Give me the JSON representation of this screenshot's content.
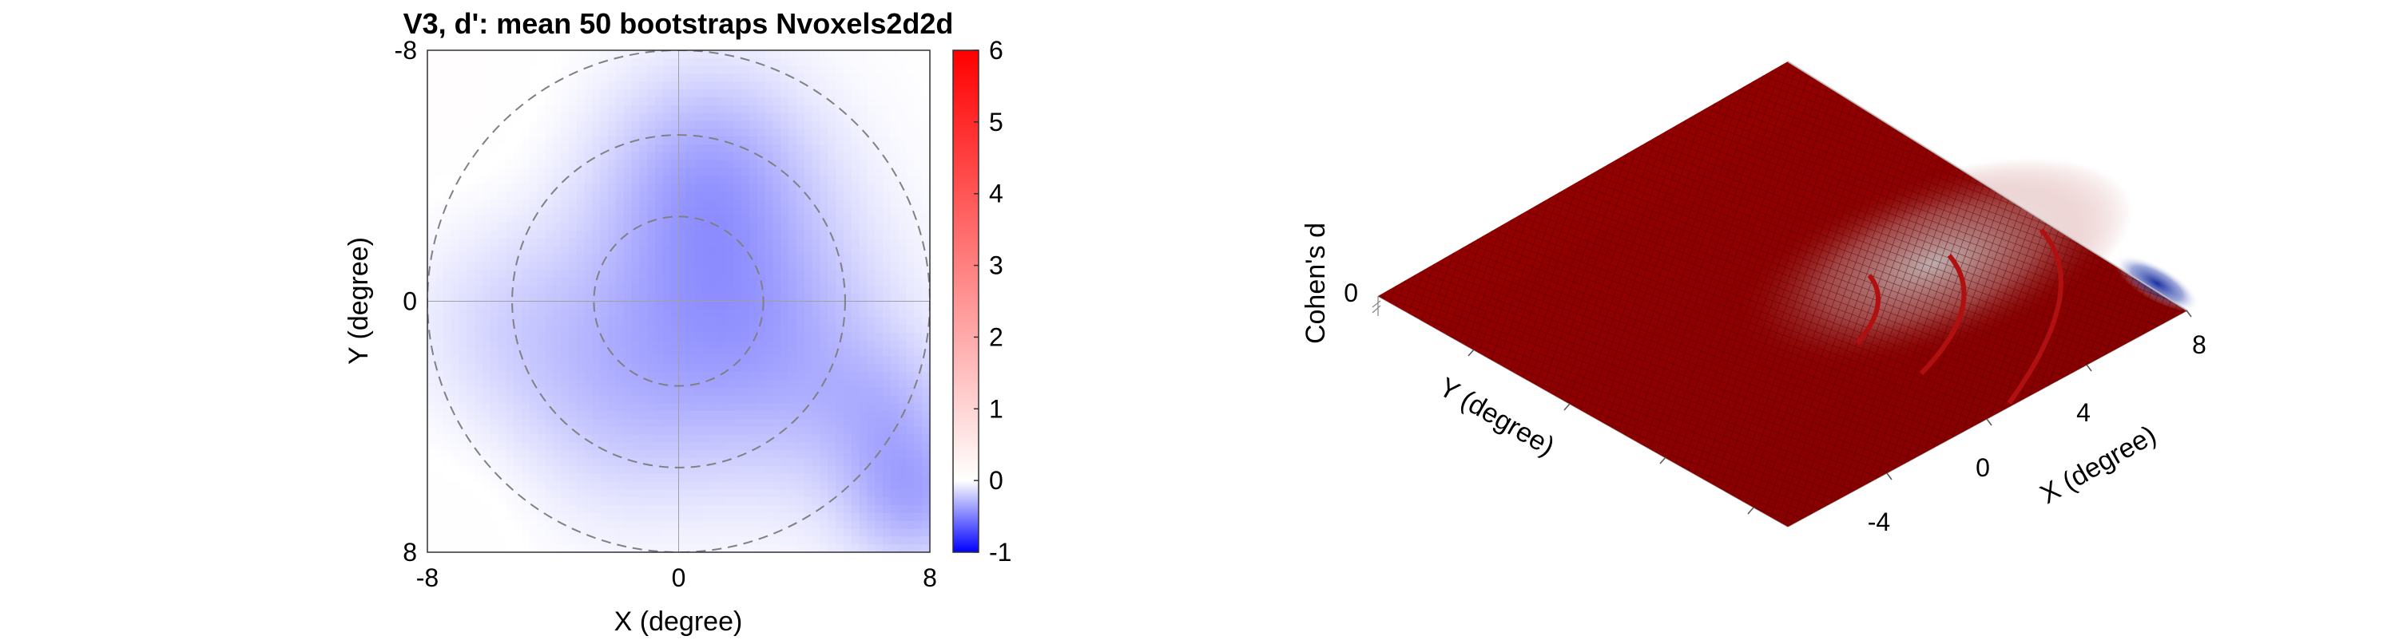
{
  "chart_data": [
    {
      "type": "heatmap",
      "title": "V3, d': mean 50 bootstraps Nvoxels2d2d",
      "xlabel": "X (degree)",
      "ylabel": "Y (degree)",
      "xlim": [
        -8,
        8
      ],
      "ylim": [
        -8,
        8
      ],
      "y_axis_reversed": true,
      "x_ticks": [
        -8,
        0,
        8
      ],
      "y_ticks": [
        -8,
        0,
        8
      ],
      "eccentricity_rings_deg": [
        2.7,
        5.3,
        8
      ],
      "colorbar": {
        "min": -1,
        "max": 6,
        "ticks": [
          -1,
          0,
          1,
          2,
          3,
          4,
          5,
          6
        ],
        "colormap": "blue-white-red"
      },
      "colors": {
        "negative": "#0000ff",
        "zero": "#ffffff",
        "positive": "#ff0000"
      },
      "blobs": [
        {
          "x": 1,
          "y": -1,
          "sigma": 3.0,
          "value": -0.3
        },
        {
          "x": 1,
          "y": -4.5,
          "sigma": 2.3,
          "value": -0.22
        },
        {
          "x": -2,
          "y": 3.2,
          "sigma": 2.6,
          "value": -0.18
        },
        {
          "x": 3.8,
          "y": 2.5,
          "sigma": 2.8,
          "value": -0.2
        },
        {
          "x": 7.5,
          "y": 6.3,
          "sigma": 1.6,
          "value": -0.3
        },
        {
          "x": 6.8,
          "y": 3.5,
          "sigma": 1.6,
          "value": -0.15
        },
        {
          "x": -5.5,
          "y": 0.6,
          "sigma": 2.2,
          "value": -0.12
        },
        {
          "x": -7.3,
          "y": -6.5,
          "sigma": 2.2,
          "value": 0.05
        },
        {
          "x": -6.8,
          "y": 6.8,
          "sigma": 1.8,
          "value": 0.04
        }
      ]
    },
    {
      "type": "surface",
      "zlabel": "Cohen's d",
      "xlabel": "X (degree)",
      "ylabel": "Y (degree)",
      "x_ticks": [
        -4,
        0,
        4,
        8
      ],
      "z_ticks": [
        0
      ],
      "surface_color": "#a00000",
      "mesh_color": "#4a0000",
      "corner_colors": {
        "negative": "#1a30a0",
        "light": "#d8d8d8"
      }
    }
  ]
}
